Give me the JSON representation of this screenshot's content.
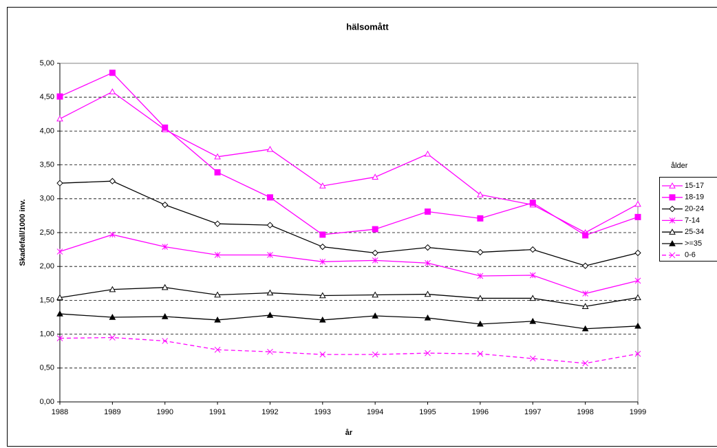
{
  "chart_data": {
    "type": "line",
    "title": "hälsomått",
    "x_label": "år",
    "y_label": "Skadefall/1000 inv.",
    "legend_title": "ålder",
    "legend_position": "right",
    "grid": true,
    "categories": [
      "1988",
      "1989",
      "1990",
      "1991",
      "1992",
      "1993",
      "1994",
      "1995",
      "1996",
      "1997",
      "1998",
      "1999"
    ],
    "ylim": [
      0,
      5
    ],
    "yticks": [
      {
        "value": 0,
        "label": "0,00"
      },
      {
        "value": 0.5,
        "label": "0,50"
      },
      {
        "value": 1,
        "label": "1,00"
      },
      {
        "value": 1.5,
        "label": "1,50"
      },
      {
        "value": 2,
        "label": "2,00"
      },
      {
        "value": 2.5,
        "label": "2,50"
      },
      {
        "value": 3,
        "label": "3,00"
      },
      {
        "value": 3.5,
        "label": "3,50"
      },
      {
        "value": 4,
        "label": "4,00"
      },
      {
        "value": 4.5,
        "label": "4,50"
      },
      {
        "value": 5,
        "label": "5,00"
      }
    ],
    "series": [
      {
        "name": "15-17",
        "color": "#ff00ff",
        "marker": "triangle-open",
        "dashed": false,
        "values": [
          4.18,
          4.58,
          4.02,
          3.62,
          3.73,
          3.19,
          3.32,
          3.66,
          3.06,
          2.91,
          2.5,
          2.92
        ]
      },
      {
        "name": "18-19",
        "color": "#ff00ff",
        "marker": "square-filled",
        "dashed": false,
        "values": [
          4.51,
          4.86,
          4.05,
          3.39,
          3.02,
          2.47,
          2.55,
          2.81,
          2.71,
          2.94,
          2.46,
          2.73
        ]
      },
      {
        "name": "20-24",
        "color": "#000000",
        "marker": "diamond-open",
        "dashed": false,
        "values": [
          3.23,
          3.26,
          2.91,
          2.63,
          2.61,
          2.29,
          2.2,
          2.28,
          2.21,
          2.25,
          2.01,
          2.2
        ]
      },
      {
        "name": "7-14",
        "color": "#ff00ff",
        "marker": "asterisk",
        "dashed": false,
        "values": [
          2.22,
          2.47,
          2.29,
          2.17,
          2.17,
          2.07,
          2.09,
          2.05,
          1.86,
          1.87,
          1.6,
          1.79
        ]
      },
      {
        "name": "25-34",
        "color": "#000000",
        "marker": "triangle-open",
        "dashed": false,
        "values": [
          1.54,
          1.66,
          1.69,
          1.58,
          1.61,
          1.57,
          1.58,
          1.59,
          1.53,
          1.53,
          1.41,
          1.54
        ]
      },
      {
        "name": ">=35",
        "color": "#000000",
        "marker": "triangle-filled",
        "dashed": false,
        "values": [
          1.3,
          1.25,
          1.26,
          1.21,
          1.28,
          1.21,
          1.27,
          1.24,
          1.15,
          1.19,
          1.08,
          1.12
        ]
      },
      {
        "name": "0-6",
        "color": "#ff00ff",
        "marker": "x",
        "dashed": true,
        "values": [
          0.94,
          0.95,
          0.9,
          0.77,
          0.74,
          0.7,
          0.7,
          0.72,
          0.71,
          0.64,
          0.57,
          0.71
        ]
      }
    ]
  }
}
